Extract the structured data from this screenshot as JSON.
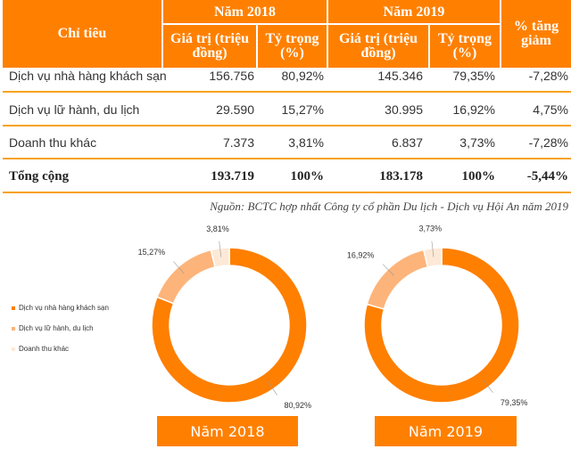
{
  "table": {
    "headers": {
      "indicator": "Chỉ tiêu",
      "year_2018": "Năm 2018",
      "year_2019": "Năm 2019",
      "value": "Giá trị (triệu đồng)",
      "share": "Tỷ trọng (%)",
      "change": "% tăng giảm"
    },
    "rows": [
      {
        "label": "Dịch vụ nhà hàng khách sạn",
        "v2018": "156.756",
        "s2018": "80,92%",
        "v2019": "145.346",
        "s2019": "79,35%",
        "change": "-7,28%"
      },
      {
        "label": "Dịch vụ lữ hành, du lịch",
        "v2018": "29.590",
        "s2018": "15,27%",
        "v2019": "30.995",
        "s2019": "16,92%",
        "change": "4,75%"
      },
      {
        "label": "Doanh thu khác",
        "v2018": "7.373",
        "s2018": "3,81%",
        "v2019": "6.837",
        "s2019": "3,73%",
        "change": "-7,28%"
      },
      {
        "label": "Tổng cộng",
        "v2018": "193.719",
        "s2018": "100%",
        "v2019": "183.178",
        "s2019": "100%",
        "change": "-5,44%"
      }
    ],
    "source": "Nguồn: BCTC hợp nhất Công ty cổ phần Du lịch - Dịch vụ Hội An năm 2019"
  },
  "chart_data": [
    {
      "type": "pie",
      "subtype": "donut",
      "title": "Năm 2018",
      "categories": [
        "Dịch vụ nhà hàng khách sạn",
        "Dịch vụ lữ hành, du lịch",
        "Doanh thu khác"
      ],
      "values": [
        80.92,
        15.27,
        3.81
      ],
      "labels": [
        "80,92%",
        "15,27%",
        "3,81%"
      ],
      "colors": [
        "#ff7f00",
        "#fdb47a",
        "#fde9d6"
      ],
      "legend": "left"
    },
    {
      "type": "pie",
      "subtype": "donut",
      "title": "Năm 2019",
      "categories": [
        "Dịch vụ nhà hàng khách sạn",
        "Dịch vụ lữ hành, du lịch",
        "Doanh thu khác"
      ],
      "values": [
        79.35,
        16.92,
        3.73
      ],
      "labels": [
        "79,35%",
        "16,92%",
        "3,73%"
      ],
      "colors": [
        "#ff7f00",
        "#fdb47a",
        "#fde9d6"
      ]
    }
  ]
}
